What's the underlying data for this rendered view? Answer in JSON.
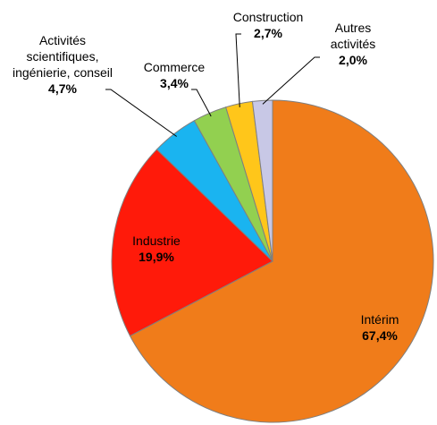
{
  "chart_data": {
    "type": "pie",
    "categories": [
      "Intérim",
      "Industrie",
      "Activités scientifiques, ingénierie, conseil",
      "Commerce",
      "Construction",
      "Autres activités"
    ],
    "values": [
      67.4,
      19.9,
      4.7,
      3.4,
      2.7,
      2.0
    ],
    "value_labels": [
      "67,4%",
      "19,9%",
      "4,7%",
      "3,4%",
      "2,7%",
      "2,0%"
    ],
    "colors": [
      "#f07c1a",
      "#ff1a0a",
      "#1ab4f0",
      "#92d050",
      "#ffc61a",
      "#c8c8e6"
    ]
  }
}
